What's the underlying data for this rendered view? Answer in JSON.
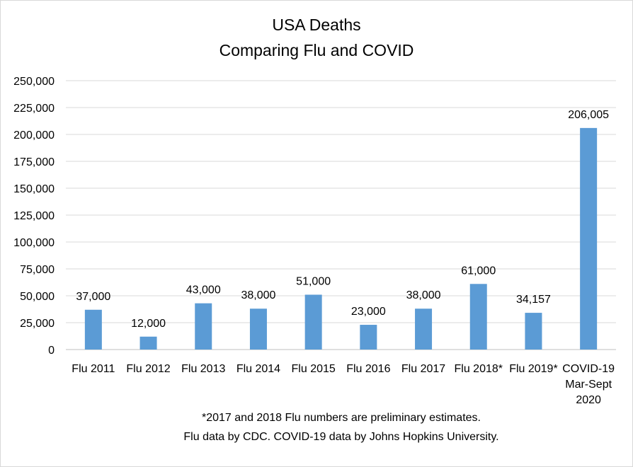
{
  "chart_data": {
    "type": "bar",
    "title_lines": [
      "USA Deaths",
      "Comparing Flu and COVID"
    ],
    "categories": [
      [
        "Flu 2011"
      ],
      [
        "Flu 2012"
      ],
      [
        "Flu 2013"
      ],
      [
        "Flu 2014"
      ],
      [
        "Flu 2015"
      ],
      [
        "Flu 2016"
      ],
      [
        "Flu 2017"
      ],
      [
        "Flu 2018*"
      ],
      [
        "Flu 2019*"
      ],
      [
        "COVID-19",
        "Mar-Sept",
        "2020"
      ]
    ],
    "values": [
      37000,
      12000,
      43000,
      38000,
      51000,
      23000,
      38000,
      61000,
      34157,
      206005
    ],
    "value_labels": [
      "37,000",
      "12,000",
      "43,000",
      "38,000",
      "51,000",
      "23,000",
      "38,000",
      "61,000",
      "34,157",
      "206,005"
    ],
    "ylim": [
      0,
      250000
    ],
    "y_ticks": [
      0,
      25000,
      50000,
      75000,
      100000,
      125000,
      150000,
      175000,
      200000,
      225000,
      250000
    ],
    "y_tick_labels": [
      "0",
      "25,000",
      "50,000",
      "75,000",
      "100,000",
      "125,000",
      "150,000",
      "175,000",
      "200,000",
      "225,000",
      "250,000"
    ],
    "grid": true,
    "legend": "none",
    "bar_color": "#5b9bd5",
    "gridline_color": "#d9d9d9",
    "footnotes": [
      "*2017 and 2018 Flu numbers are preliminary estimates.",
      "Flu data by CDC. COVID-19 data by Johns Hopkins University."
    ]
  }
}
